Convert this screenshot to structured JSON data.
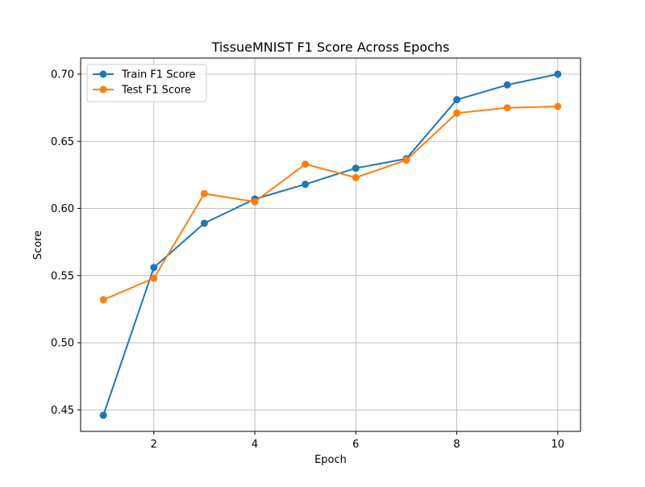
{
  "chart_data": {
    "type": "line",
    "title": "TissueMNIST F1 Score Across Epochs",
    "xlabel": "Epoch",
    "ylabel": "Score",
    "x": [
      1,
      2,
      3,
      4,
      5,
      6,
      7,
      8,
      9,
      10
    ],
    "xlim": [
      0.55,
      10.45
    ],
    "ylim": [
      0.434,
      0.712
    ],
    "xticks": [
      2,
      4,
      6,
      8,
      10
    ],
    "yticks": [
      0.45,
      0.5,
      0.55,
      0.6,
      0.65,
      0.7
    ],
    "ytick_labels": [
      "0.45",
      "0.50",
      "0.55",
      "0.60",
      "0.65",
      "0.70"
    ],
    "grid": true,
    "legend_position": "upper-left",
    "series": [
      {
        "name": "Train F1 Score",
        "color": "#1f77b4",
        "marker": "circle",
        "values": [
          0.446,
          0.556,
          0.589,
          0.607,
          0.618,
          0.63,
          0.637,
          0.681,
          0.692,
          0.7
        ]
      },
      {
        "name": "Test F1 Score",
        "color": "#ff7f0e",
        "marker": "circle",
        "values": [
          0.532,
          0.548,
          0.611,
          0.605,
          0.633,
          0.623,
          0.636,
          0.671,
          0.675,
          0.676
        ]
      }
    ]
  }
}
